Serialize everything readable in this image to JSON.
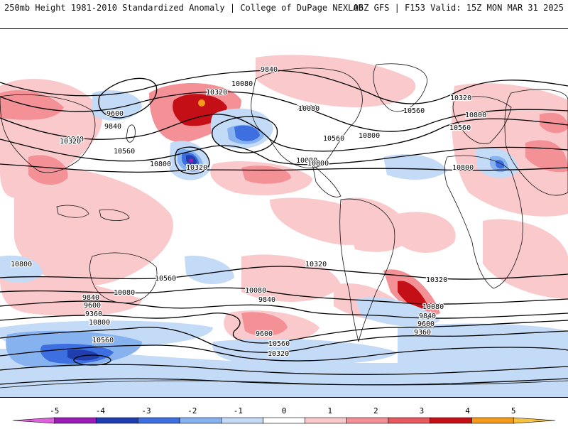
{
  "header": {
    "left": "250mb Height 1981-2010 Standardized Anomaly | College of DuPage NEXLAB",
    "right": "06Z GFS | F153 Valid: 15Z MON MAR 31 2025"
  },
  "colorbar": {
    "ticks": [
      "-5",
      "-4",
      "-3",
      "-2",
      "-1",
      "0",
      "1",
      "2",
      "3",
      "4",
      "5"
    ],
    "colors": [
      "#e060e0",
      "#9a1bb8",
      "#1f3fb0",
      "#3d6fe0",
      "#86b2f0",
      "#c4dbf8",
      "#ffffff",
      "#fac9cc",
      "#f39197",
      "#e65a5f",
      "#c40f17",
      "#f49b1a",
      "#f7c240"
    ]
  },
  "map": {
    "land_color": "#ffffff",
    "coast_color": "#000000",
    "contour_labels": [
      "9840",
      "10320",
      "10080",
      "9600",
      "9840",
      "10080",
      "10320",
      "10560",
      "10560",
      "10800",
      "10080",
      "9840",
      "10320",
      "10560",
      "10800",
      "10080",
      "10320",
      "10560",
      "10800",
      "10800",
      "10800",
      "10800",
      "10560",
      "10320",
      "10080",
      "9840",
      "9600",
      "9360",
      "10800",
      "10560",
      "10320",
      "10080",
      "9840",
      "9600",
      "10560",
      "10320",
      "10080",
      "9840",
      "9600",
      "9360"
    ],
    "anomaly_blobs": [
      {
        "level": 3,
        "color": "#c40f17"
      },
      {
        "level": -3,
        "color": "#3d6fe0"
      },
      {
        "level": -4,
        "color": "#1f3fb0"
      },
      {
        "level": -5,
        "color": "#9a1bb8"
      },
      {
        "level": 2,
        "color": "#e65a5f"
      },
      {
        "level": -2,
        "color": "#86b2f0"
      }
    ]
  }
}
